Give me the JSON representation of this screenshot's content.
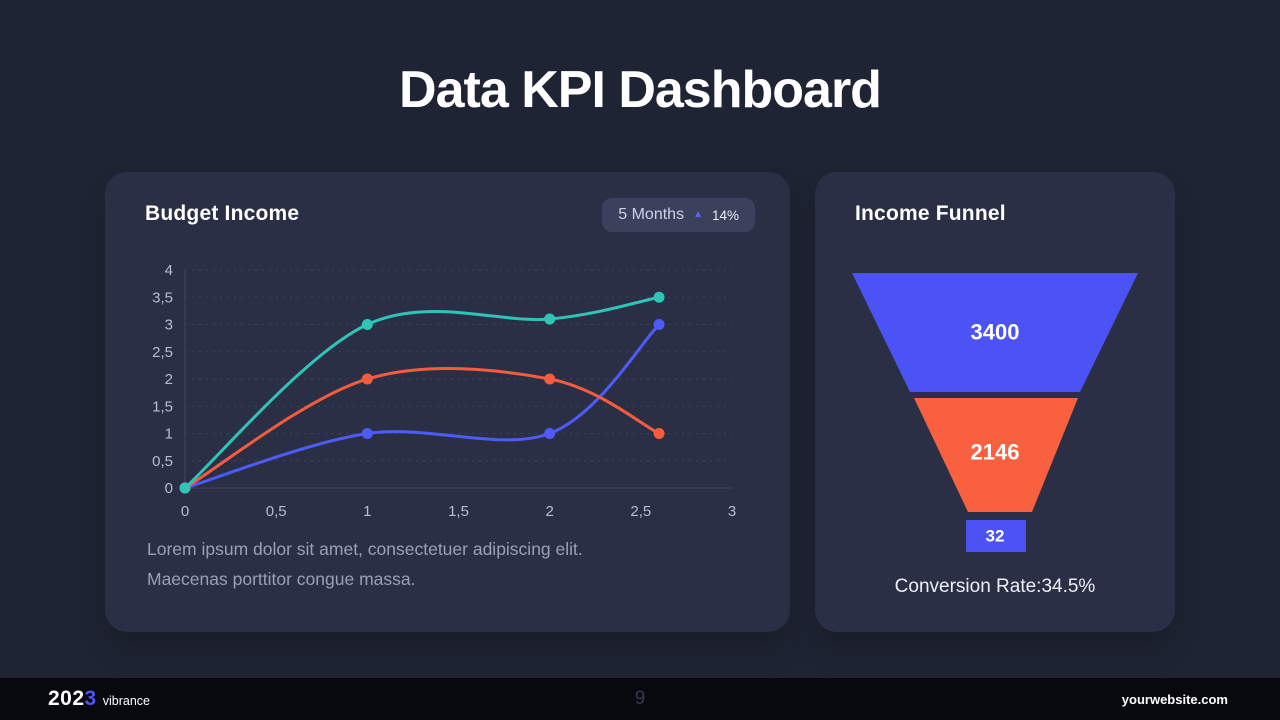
{
  "slide_title": "Data KPI Dashboard",
  "budget_card": {
    "title": "Budget Income",
    "badge": {
      "period": "5 Months",
      "arrow_icon": "▲",
      "change": "14%"
    },
    "description_line1": "Lorem ipsum dolor sit amet, consectetuer adipiscing elit.",
    "description_line2": "Maecenas porttitor congue massa."
  },
  "funnel_card": {
    "title": "Income Funnel",
    "conversion_rate": "Conversion Rate:34.5%"
  },
  "footer": {
    "year_prefix": "202",
    "year_accent": "3",
    "brand": "vibrance",
    "page_number": "9",
    "website": "yourwebsite.com"
  },
  "colors": {
    "background": "#1f2434",
    "card": "#2a2f45",
    "badge_bg": "#3b415c",
    "accent_blue": "#4c53f4",
    "accent_teal": "#2ec5b6",
    "accent_orange": "#f55c3d",
    "footer_bg": "#08080f"
  },
  "chart_data": [
    {
      "type": "line",
      "title": "Budget Income",
      "xlabel": "",
      "ylabel": "",
      "xlim": [
        0,
        3
      ],
      "ylim": [
        0,
        4
      ],
      "x_ticks": [
        "0",
        "0,5",
        "1",
        "1,5",
        "2",
        "2,5",
        "3"
      ],
      "y_ticks": [
        "0",
        "0,5",
        "1",
        "1,5",
        "2",
        "2,5",
        "3",
        "3,5",
        "4"
      ],
      "grid": "horizontal-dotted",
      "legend_position": "none",
      "grid_color": "#3f4560",
      "axis_text_color": "#b7bdd1",
      "series": [
        {
          "name": "series-blue",
          "color": "#4d5bf9",
          "points": [
            [
              0,
              0
            ],
            [
              1,
              1
            ],
            [
              2,
              1
            ],
            [
              2.6,
              3
            ]
          ]
        },
        {
          "name": "series-orange",
          "color": "#f55c3d",
          "points": [
            [
              0,
              0
            ],
            [
              1,
              2
            ],
            [
              2,
              2
            ],
            [
              2.6,
              1
            ]
          ]
        },
        {
          "name": "series-teal",
          "color": "#2ec5b6",
          "points": [
            [
              0,
              0
            ],
            [
              1,
              3
            ],
            [
              2,
              3.1
            ],
            [
              2.6,
              3.5
            ]
          ]
        }
      ]
    },
    {
      "type": "funnel",
      "title": "Income Funnel",
      "stages": [
        {
          "value": "3400",
          "color": "#4c53f4"
        },
        {
          "value": "2146",
          "color": "#f8603f"
        },
        {
          "value": "32",
          "color": "#4c53f4"
        }
      ],
      "conversion_rate": "34.5%"
    }
  ]
}
